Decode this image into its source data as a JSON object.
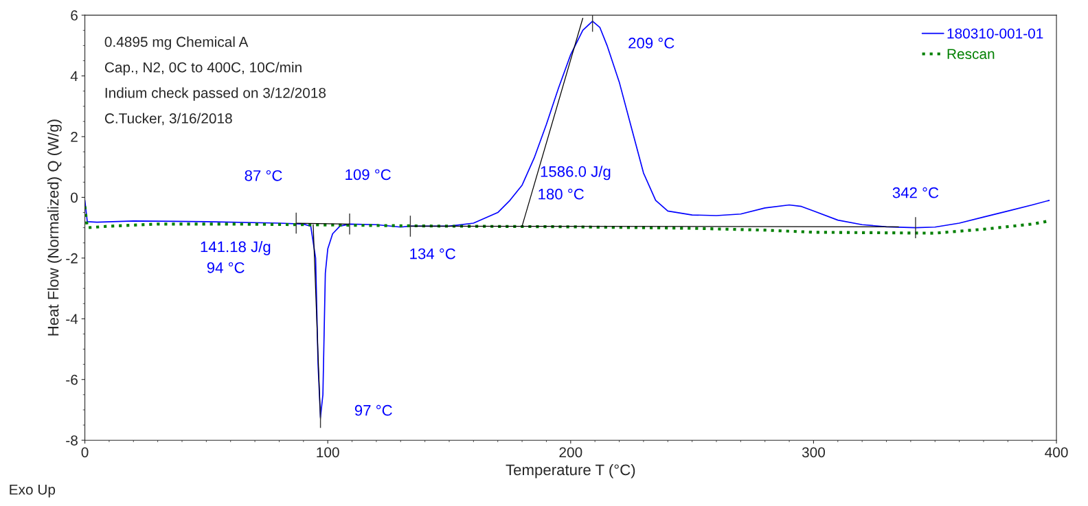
{
  "chart_data": {
    "type": "line",
    "xlabel": "Temperature T (°C)",
    "ylabel": "Heat Flow (Normalized) Q (W/g)",
    "xlim": [
      0,
      400
    ],
    "ylim": [
      -8,
      6
    ],
    "xticks": [
      0,
      100,
      200,
      300,
      400
    ],
    "yticks": [
      -8,
      -6,
      -4,
      -2,
      0,
      2,
      4,
      6
    ],
    "grid": false,
    "legend": "top right",
    "series": [
      {
        "name": "180310-001-01",
        "color": "#0000ff",
        "line_style": "solid",
        "x": [
          0,
          1,
          5,
          20,
          50,
          80,
          90,
          93,
          95,
          96,
          97,
          98,
          98.5,
          99,
          100,
          102,
          105,
          109,
          120,
          130,
          134,
          150,
          160,
          170,
          175,
          180,
          185,
          190,
          195,
          200,
          205,
          209,
          212,
          215,
          220,
          225,
          230,
          235,
          240,
          250,
          260,
          270,
          280,
          290,
          295,
          300,
          310,
          320,
          330,
          342,
          350,
          360,
          370,
          380,
          390,
          397
        ],
        "values": [
          -0.1,
          -0.8,
          -0.82,
          -0.78,
          -0.8,
          -0.85,
          -0.88,
          -0.95,
          -2.0,
          -5.5,
          -7.25,
          -6.5,
          -4.5,
          -2.5,
          -1.7,
          -1.2,
          -0.95,
          -0.88,
          -0.9,
          -0.98,
          -0.95,
          -0.95,
          -0.85,
          -0.5,
          -0.1,
          0.4,
          1.3,
          2.4,
          3.6,
          4.7,
          5.5,
          5.8,
          5.6,
          5.0,
          3.8,
          2.3,
          0.8,
          -0.1,
          -0.45,
          -0.58,
          -0.6,
          -0.55,
          -0.35,
          -0.25,
          -0.3,
          -0.45,
          -0.75,
          -0.9,
          -0.97,
          -1.0,
          -0.98,
          -0.85,
          -0.65,
          -0.45,
          -0.25,
          -0.1
        ]
      },
      {
        "name": "Rescan",
        "color": "#008000",
        "line_style": "dotted",
        "x": [
          0,
          1,
          10,
          30,
          60,
          90,
          110,
          150,
          200,
          250,
          280,
          300,
          350,
          370,
          390,
          397
        ],
        "values": [
          -0.3,
          -1.0,
          -0.95,
          -0.88,
          -0.88,
          -0.9,
          -0.92,
          -0.95,
          -0.97,
          -1.02,
          -1.08,
          -1.15,
          -1.18,
          -1.05,
          -0.88,
          -0.78
        ]
      },
      {
        "color": "#000000",
        "line_style": "solid",
        "x": [
          87,
          109
        ],
        "values": [
          -0.85,
          -0.88
        ]
      },
      {
        "color": "#000000",
        "line_style": "solid",
        "x": [
          94,
          97
        ],
        "values": [
          -0.9,
          -7.3
        ]
      },
      {
        "color": "#000000",
        "line_style": "solid",
        "x": [
          134,
          335
        ],
        "values": [
          -0.95,
          -0.97
        ]
      },
      {
        "color": "#000000",
        "line_style": "solid",
        "x": [
          180,
          205
        ],
        "values": [
          -0.95,
          5.9
        ]
      }
    ],
    "annotations": [
      "0.4895 mg Chemical A",
      "Cap., N2, 0C to 400C, 10C/min",
      "Indium check passed on 3/12/2018",
      "C.Tucker, 3/16/2018",
      "Exo Up",
      "141.18 J/g",
      "94 °C",
      "1586.0 J/g",
      "180 °C",
      {
        "text": "87 °C",
        "x": 87,
        "y": -0.85
      },
      {
        "text": "109 °C",
        "x": 109,
        "y": -0.88
      },
      {
        "text": "134 °C",
        "x": 134,
        "y": -0.95
      },
      {
        "text": "97 °C",
        "x": 97,
        "y": -7.25
      },
      {
        "text": "209 °C",
        "x": 209,
        "y": 5.8
      },
      {
        "text": "342 °C",
        "x": 342,
        "y": -1.0
      }
    ]
  }
}
